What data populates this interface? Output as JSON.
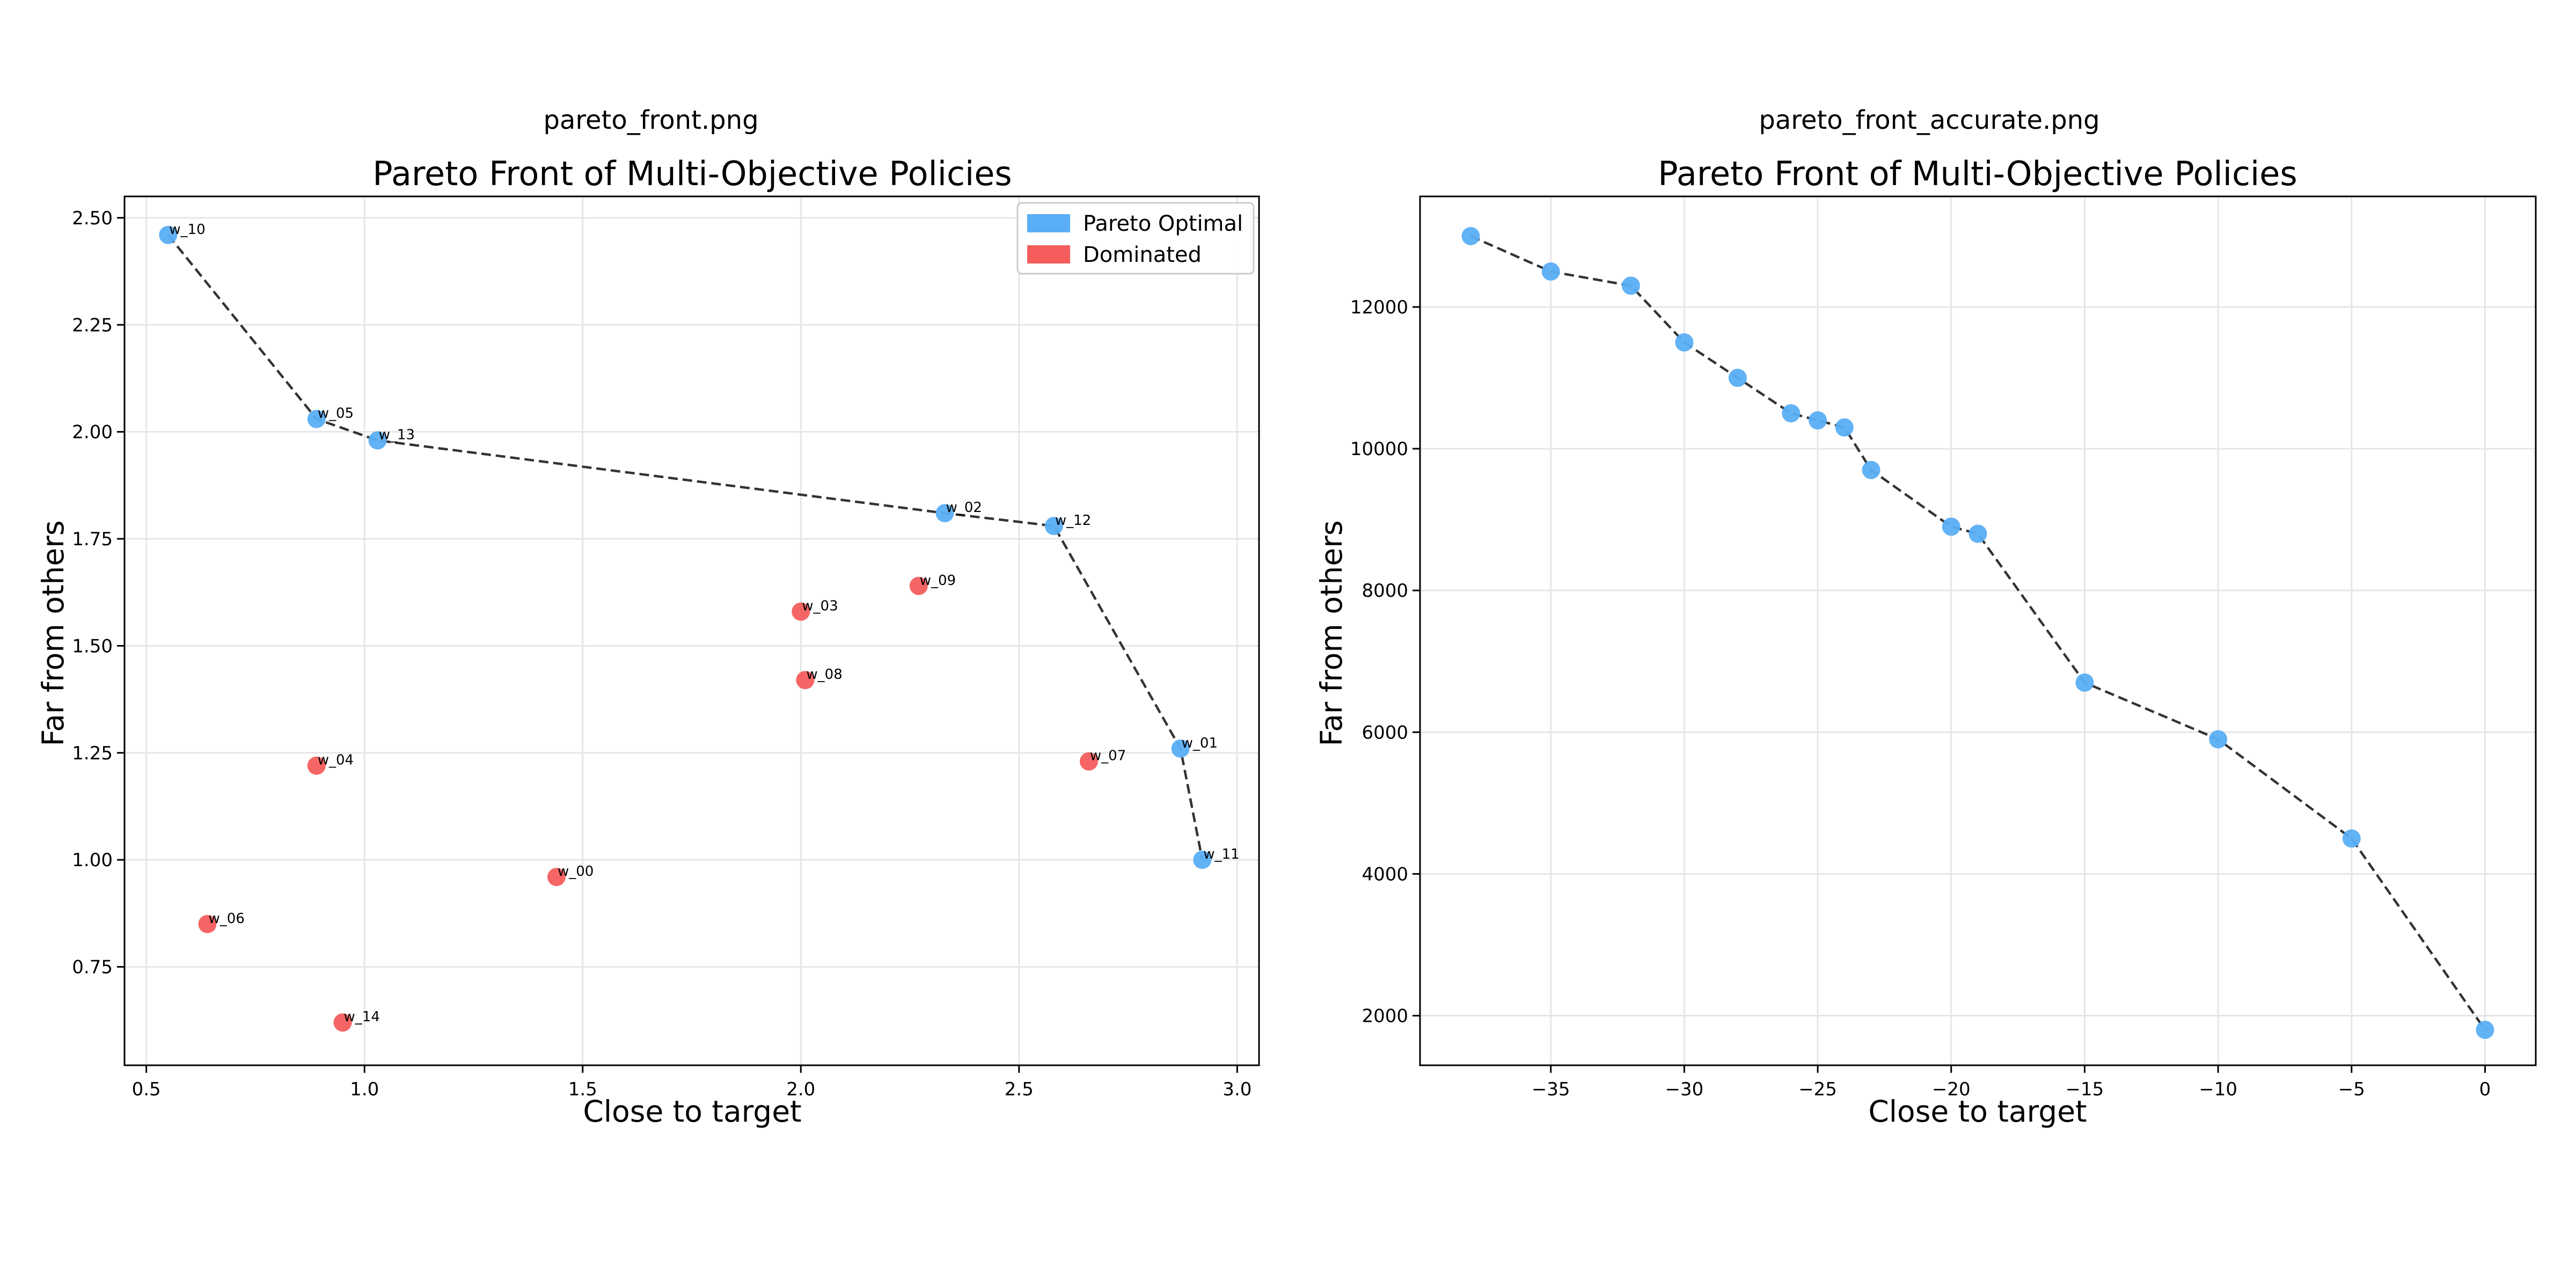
{
  "panels": [
    {
      "caption": "pareto_front.png",
      "chart_data": {
        "type": "scatter",
        "title": "Pareto Front of Multi-Objective Policies",
        "xlabel": "Close to target",
        "ylabel": "Far from others",
        "xlim": [
          0.45,
          3.05
        ],
        "ylim": [
          0.52,
          2.55
        ],
        "xticks": [
          0.5,
          1.0,
          1.5,
          2.0,
          2.5,
          3.0
        ],
        "xtick_labels": [
          "0.5",
          "1.0",
          "1.5",
          "2.0",
          "2.5",
          "3.0"
        ],
        "yticks": [
          0.75,
          1.0,
          1.25,
          1.5,
          1.75,
          2.0,
          2.25,
          2.5
        ],
        "ytick_labels": [
          "0.75",
          "1.00",
          "1.25",
          "1.50",
          "1.75",
          "2.00",
          "2.25",
          "2.50"
        ],
        "grid": true,
        "legend_position": "top-right",
        "legend": [
          {
            "label": "Pareto Optimal",
            "color": "#5aaef5"
          },
          {
            "label": "Dominated",
            "color": "#f55d5d"
          }
        ],
        "front_line": true,
        "front_order": [
          "w_10",
          "w_05",
          "w_13",
          "w_02",
          "w_12",
          "w_01",
          "w_11"
        ],
        "series": [
          {
            "color": "#5aaef5",
            "points": [
              {
                "label": "w_10",
                "x": 0.55,
                "y": 2.46
              },
              {
                "label": "w_05",
                "x": 0.89,
                "y": 2.03
              },
              {
                "label": "w_13",
                "x": 1.03,
                "y": 1.98
              },
              {
                "label": "w_02",
                "x": 2.33,
                "y": 1.81
              },
              {
                "label": "w_12",
                "x": 2.58,
                "y": 1.78
              },
              {
                "label": "w_01",
                "x": 2.87,
                "y": 1.26
              },
              {
                "label": "w_11",
                "x": 2.92,
                "y": 1.0
              }
            ]
          },
          {
            "color": "#f55d5d",
            "points": [
              {
                "label": "w_09",
                "x": 2.27,
                "y": 1.64
              },
              {
                "label": "w_03",
                "x": 2.0,
                "y": 1.58
              },
              {
                "label": "w_08",
                "x": 2.01,
                "y": 1.42
              },
              {
                "label": "w_04",
                "x": 0.89,
                "y": 1.22
              },
              {
                "label": "w_07",
                "x": 2.66,
                "y": 1.23
              },
              {
                "label": "w_00",
                "x": 1.44,
                "y": 0.96
              },
              {
                "label": "w_06",
                "x": 0.64,
                "y": 0.85
              },
              {
                "label": "w_14",
                "x": 0.95,
                "y": 0.62
              }
            ]
          }
        ]
      }
    },
    {
      "caption": "pareto_front_accurate.png",
      "chart_data": {
        "type": "scatter",
        "title": "Pareto Front of Multi-Objective Policies",
        "xlabel": "Close to target",
        "ylabel": "Far from others",
        "xlim": [
          -39.9,
          1.9
        ],
        "ylim": [
          1300,
          13560
        ],
        "xticks": [
          -35,
          -30,
          -25,
          -20,
          -15,
          -10,
          -5,
          0
        ],
        "xtick_labels": [
          "−35",
          "−30",
          "−25",
          "−20",
          "−15",
          "−10",
          "−5",
          "0"
        ],
        "yticks": [
          2000,
          4000,
          6000,
          8000,
          10000,
          12000
        ],
        "ytick_labels": [
          "2000",
          "4000",
          "6000",
          "8000",
          "10000",
          "12000"
        ],
        "grid": true,
        "front_line": true,
        "series": [
          {
            "color": "#5aaef5",
            "points": [
              {
                "x": -38,
                "y": 13000
              },
              {
                "x": -35,
                "y": 12500
              },
              {
                "x": -32,
                "y": 12300
              },
              {
                "x": -30,
                "y": 11500
              },
              {
                "x": -28,
                "y": 11000
              },
              {
                "x": -26,
                "y": 10500
              },
              {
                "x": -25,
                "y": 10400
              },
              {
                "x": -24,
                "y": 10300
              },
              {
                "x": -23,
                "y": 9700
              },
              {
                "x": -20,
                "y": 8900
              },
              {
                "x": -19,
                "y": 8800
              },
              {
                "x": -15,
                "y": 6700
              },
              {
                "x": -10,
                "y": 5900
              },
              {
                "x": -5,
                "y": 4500
              },
              {
                "x": 0,
                "y": 1800
              }
            ]
          }
        ]
      }
    }
  ]
}
